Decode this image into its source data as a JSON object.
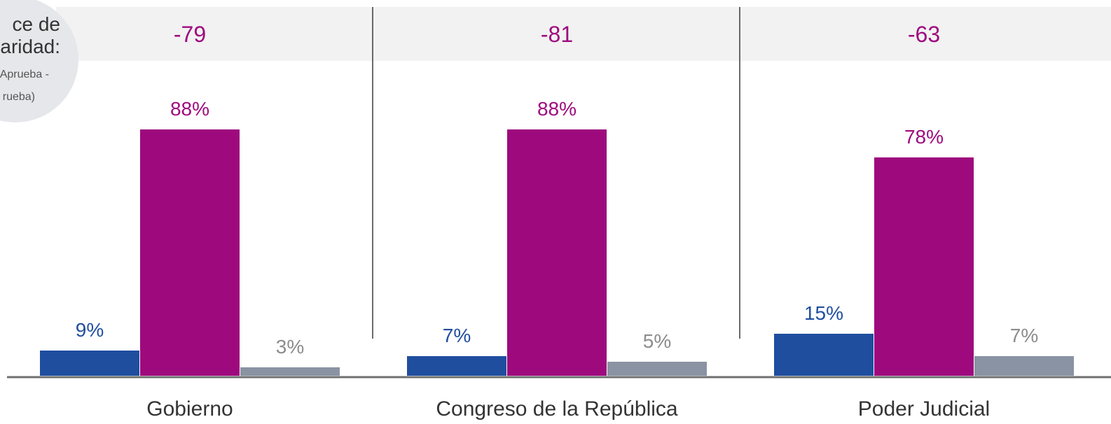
{
  "badge": {
    "title_line1": "ce de",
    "title_line2": "aridad:",
    "sub_line1": "Aprueba -",
    "sub_line2": "rueba)"
  },
  "colors": {
    "series0": "#1f4e9f",
    "series1": "#9e0a7e",
    "series2": "#8a93a3",
    "series2_label": "#8c8c8c",
    "index_text": "#9e0a7e"
  },
  "chart_data": {
    "type": "bar",
    "categories": [
      "Gobierno",
      "Congreso de la República",
      "Poder Judicial"
    ],
    "index_values": [
      "-79",
      "-81",
      "-63"
    ],
    "series": [
      {
        "values": [
          9,
          7,
          15
        ],
        "labels": [
          "9%",
          "7%",
          "15%"
        ]
      },
      {
        "values": [
          88,
          88,
          78
        ],
        "labels": [
          "88%",
          "88%",
          "78%"
        ]
      },
      {
        "values": [
          3,
          5,
          7
        ],
        "labels": [
          "3%",
          "5%",
          "7%"
        ]
      }
    ],
    "ylim": [
      0,
      100
    ],
    "grid": false,
    "legend": "none"
  }
}
